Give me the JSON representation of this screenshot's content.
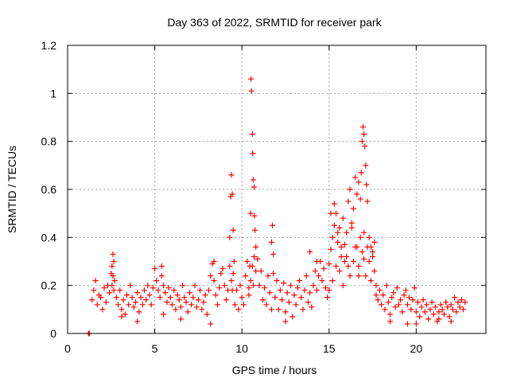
{
  "chart_data": {
    "type": "scatter",
    "title": "Day 363 of 2022, SRMTID for receiver park",
    "xlabel": "GPS time / hours",
    "ylabel": "SRMTID / TECUs",
    "xlim": [
      0,
      24
    ],
    "ylim": [
      0,
      1.2
    ],
    "xticks": [
      0,
      5,
      10,
      15,
      20
    ],
    "xtick_labels": [
      "0",
      "5",
      "10",
      "15",
      "20"
    ],
    "yticks": [
      0,
      0.2,
      0.4,
      0.6,
      0.8,
      1.0,
      1.2
    ],
    "ytick_labels": [
      "0",
      "0.2",
      "0.4",
      "0.6",
      "0.8",
      "1",
      "1.2"
    ],
    "grid": true,
    "marker": "+",
    "series": [
      {
        "name": "SRMTID",
        "color": "#ff0000",
        "x": [
          1.2,
          1.25,
          1.4,
          1.5,
          1.6,
          1.7,
          1.8,
          1.9,
          2.0,
          2.1,
          2.2,
          2.3,
          2.4,
          2.5,
          2.55,
          2.6,
          2.65,
          2.7,
          2.8,
          2.9,
          3.0,
          3.1,
          3.2,
          3.3,
          3.4,
          3.5,
          3.6,
          3.7,
          3.8,
          3.9,
          4.0,
          4.1,
          4.2,
          4.3,
          4.4,
          4.5,
          4.6,
          4.7,
          4.8,
          4.9,
          5.0,
          5.1,
          5.2,
          5.3,
          5.4,
          5.5,
          5.6,
          5.7,
          5.8,
          5.9,
          6.0,
          6.1,
          6.2,
          6.3,
          6.4,
          6.5,
          6.6,
          6.7,
          6.8,
          6.9,
          7.0,
          7.1,
          7.2,
          7.3,
          7.4,
          7.5,
          7.6,
          7.7,
          7.8,
          7.9,
          8.0,
          8.1,
          8.2,
          8.3,
          8.4,
          8.5,
          8.6,
          8.7,
          8.8,
          8.9,
          9.0,
          9.1,
          9.2,
          9.3,
          9.35,
          9.4,
          9.45,
          9.5,
          9.55,
          9.6,
          9.7,
          9.8,
          9.9,
          10.0,
          10.1,
          10.2,
          10.3,
          10.4,
          10.45,
          10.5,
          10.52,
          10.55,
          10.6,
          10.62,
          10.65,
          10.7,
          10.72,
          10.75,
          10.8,
          10.9,
          11.0,
          11.1,
          11.2,
          11.3,
          11.4,
          11.5,
          11.6,
          11.7,
          11.75,
          11.8,
          11.9,
          12.0,
          12.1,
          12.2,
          12.3,
          12.4,
          12.5,
          12.6,
          12.7,
          12.8,
          12.9,
          13.0,
          13.1,
          13.2,
          13.3,
          13.4,
          13.5,
          13.6,
          13.7,
          13.8,
          13.9,
          14.0,
          14.1,
          14.2,
          14.3,
          14.4,
          14.5,
          14.6,
          14.7,
          14.8,
          14.9,
          15.0,
          15.1,
          15.2,
          15.3,
          15.4,
          15.5,
          15.6,
          15.7,
          15.8,
          15.9,
          16.0,
          16.1,
          16.2,
          16.3,
          16.4,
          16.5,
          16.6,
          16.7,
          16.8,
          16.85,
          16.9,
          16.95,
          17.0,
          17.05,
          17.1,
          17.15,
          17.2,
          17.3,
          17.4,
          17.5,
          17.6,
          17.7,
          17.8,
          17.9,
          18.0,
          18.1,
          18.2,
          18.3,
          18.4,
          18.5,
          18.6,
          18.7,
          18.8,
          18.9,
          19.0,
          19.1,
          19.2,
          19.3,
          19.4,
          19.5,
          19.6,
          19.7,
          19.8,
          19.9,
          20.0,
          20.1,
          20.2,
          20.3,
          20.4,
          20.5,
          20.6,
          20.7,
          20.8,
          20.9,
          21.0,
          21.1,
          21.2,
          21.3,
          21.4,
          21.5,
          21.6,
          21.7,
          21.8,
          21.9,
          22.0,
          22.1,
          22.2,
          22.3,
          22.4,
          22.5,
          22.6,
          22.7,
          22.8,
          2.55,
          2.6,
          2.65,
          3.1,
          5.4,
          5.5,
          8.2,
          8.4,
          9.3,
          9.4,
          9.45,
          9.5,
          10.4,
          10.5,
          10.6,
          10.65,
          10.7,
          10.8,
          11.7,
          11.8,
          13.9,
          14.3,
          15.0,
          15.2,
          15.4,
          15.6,
          15.8,
          16.0,
          16.2,
          16.4,
          16.6,
          16.7,
          16.8,
          16.9,
          17.0,
          17.1,
          17.2,
          17.3,
          17.5,
          17.6,
          15.1,
          15.3,
          15.5,
          15.7,
          15.9,
          16.1,
          16.3,
          16.5,
          16.7,
          17.0,
          17.4,
          17.7,
          18.5,
          19.5,
          20.0,
          21.3,
          22.0,
          4.0,
          6.5,
          12.5
        ],
        "y": [
          0.0,
          0.0,
          0.14,
          0.18,
          0.22,
          0.12,
          0.16,
          0.15,
          0.1,
          0.19,
          0.13,
          0.2,
          0.17,
          0.25,
          0.28,
          0.33,
          0.3,
          0.22,
          0.15,
          0.12,
          0.18,
          0.1,
          0.14,
          0.08,
          0.16,
          0.12,
          0.2,
          0.15,
          0.11,
          0.13,
          0.17,
          0.09,
          0.15,
          0.12,
          0.18,
          0.14,
          0.2,
          0.16,
          0.12,
          0.19,
          0.27,
          0.22,
          0.18,
          0.15,
          0.24,
          0.2,
          0.17,
          0.13,
          0.19,
          0.15,
          0.12,
          0.18,
          0.1,
          0.16,
          0.14,
          0.11,
          0.2,
          0.15,
          0.13,
          0.09,
          0.17,
          0.12,
          0.15,
          0.2,
          0.11,
          0.14,
          0.18,
          0.1,
          0.13,
          0.16,
          0.08,
          0.18,
          0.24,
          0.29,
          0.22,
          0.16,
          0.12,
          0.19,
          0.25,
          0.27,
          0.2,
          0.14,
          0.18,
          0.4,
          0.57,
          0.66,
          0.58,
          0.43,
          0.3,
          0.12,
          0.18,
          0.1,
          0.2,
          0.15,
          0.12,
          0.24,
          0.3,
          0.19,
          0.28,
          0.5,
          1.06,
          1.01,
          0.83,
          0.75,
          0.64,
          0.61,
          0.49,
          0.43,
          0.36,
          0.31,
          0.2,
          0.26,
          0.14,
          0.19,
          0.12,
          0.24,
          0.17,
          0.38,
          0.45,
          0.33,
          0.15,
          0.22,
          0.1,
          0.18,
          0.14,
          0.21,
          0.09,
          0.17,
          0.13,
          0.2,
          0.07,
          0.16,
          0.12,
          0.19,
          0.22,
          0.15,
          0.1,
          0.18,
          0.24,
          0.13,
          0.17,
          0.11,
          0.2,
          0.26,
          0.18,
          0.24,
          0.3,
          0.22,
          0.27,
          0.19,
          0.15,
          0.29,
          0.35,
          0.4,
          0.45,
          0.5,
          0.38,
          0.44,
          0.32,
          0.48,
          0.37,
          0.42,
          0.55,
          0.6,
          0.46,
          0.52,
          0.65,
          0.58,
          0.63,
          0.56,
          0.67,
          0.8,
          0.86,
          0.83,
          0.78,
          0.7,
          0.62,
          0.55,
          0.4,
          0.36,
          0.32,
          0.26,
          0.2,
          0.14,
          0.18,
          0.12,
          0.16,
          0.1,
          0.2,
          0.13,
          0.08,
          0.15,
          0.17,
          0.11,
          0.19,
          0.12,
          0.14,
          0.09,
          0.16,
          0.18,
          0.12,
          0.15,
          0.1,
          0.14,
          0.19,
          0.09,
          0.13,
          0.07,
          0.11,
          0.14,
          0.09,
          0.12,
          0.06,
          0.1,
          0.13,
          0.08,
          0.11,
          0.05,
          0.09,
          0.12,
          0.1,
          0.08,
          0.13,
          0.11,
          0.07,
          0.12,
          0.1,
          0.15,
          0.09,
          0.13,
          0.11,
          0.14,
          0.1,
          0.13,
          0.2,
          0.24,
          0.18,
          0.07,
          0.28,
          0.08,
          0.04,
          0.3,
          0.28,
          0.22,
          0.18,
          0.25,
          0.16,
          0.22,
          0.28,
          0.2,
          0.32,
          0.26,
          0.1,
          0.25,
          0.34,
          0.3,
          0.18,
          0.22,
          0.28,
          0.26,
          0.2,
          0.32,
          0.24,
          0.3,
          0.36,
          0.28,
          0.4,
          0.34,
          0.31,
          0.24,
          0.36,
          0.3,
          0.34,
          0.38,
          0.5,
          0.54,
          0.42,
          0.36,
          0.3,
          0.28,
          0.44,
          0.36,
          0.24,
          0.42,
          0.22,
          0.16,
          0.05,
          0.04,
          0.04,
          0.06,
          0.05,
          0.05,
          0.06,
          0.05
        ]
      }
    ]
  }
}
